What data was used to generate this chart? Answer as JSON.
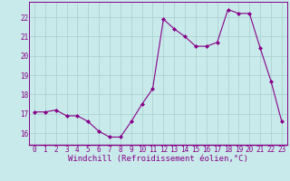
{
  "x": [
    0,
    1,
    2,
    3,
    4,
    5,
    6,
    7,
    8,
    9,
    10,
    11,
    12,
    13,
    14,
    15,
    16,
    17,
    18,
    19,
    20,
    21,
    22,
    23
  ],
  "y": [
    17.1,
    17.1,
    17.2,
    16.9,
    16.9,
    16.6,
    16.1,
    15.8,
    15.8,
    16.6,
    17.5,
    18.3,
    21.9,
    21.4,
    21.0,
    20.5,
    20.5,
    20.7,
    22.4,
    22.2,
    22.2,
    20.4,
    18.7,
    16.6
  ],
  "line_color": "#880088",
  "marker": "D",
  "markersize": 2.0,
  "linewidth": 0.8,
  "bg_color": "#c8eaea",
  "grid_color": "#a8cece",
  "xlabel": "Windchill (Refroidissement éolien,°C)",
  "xlabel_fontsize": 6.5,
  "ylabel_ticks": [
    16,
    17,
    18,
    19,
    20,
    21,
    22
  ],
  "xlim": [
    -0.5,
    23.5
  ],
  "ylim": [
    15.4,
    22.8
  ],
  "tick_fontsize": 5.5,
  "xticks": [
    0,
    1,
    2,
    3,
    4,
    5,
    6,
    7,
    8,
    9,
    10,
    11,
    12,
    13,
    14,
    15,
    16,
    17,
    18,
    19,
    20,
    21,
    22,
    23
  ]
}
